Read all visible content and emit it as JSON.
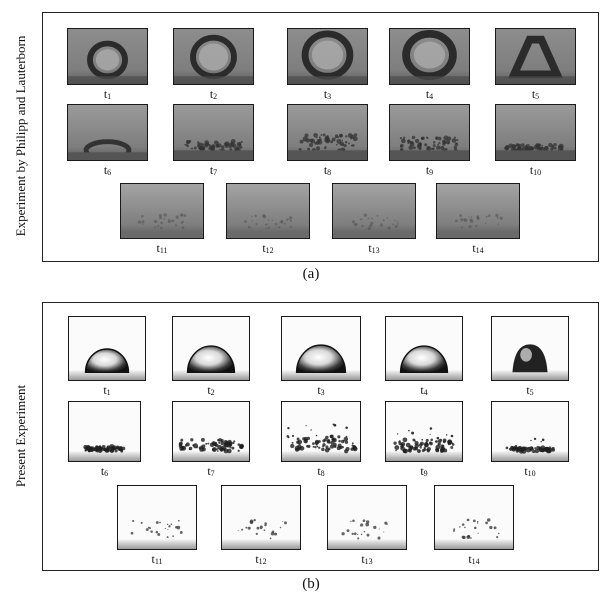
{
  "panel_a": {
    "side_label": "Experiment by Philipp and Lauterborn",
    "caption": "(a)",
    "labels": [
      "t1",
      "t2",
      "t3",
      "t4",
      "t5",
      "t6",
      "t7",
      "t8",
      "t9",
      "t10",
      "t11",
      "t12",
      "t13",
      "t14"
    ]
  },
  "panel_b": {
    "side_label": "Present Experiment",
    "caption": "(b)",
    "labels": [
      "t1",
      "t2",
      "t3",
      "t4",
      "t5",
      "t6",
      "t7",
      "t8",
      "t9",
      "t10",
      "t11",
      "t12",
      "t13",
      "t14"
    ]
  }
}
